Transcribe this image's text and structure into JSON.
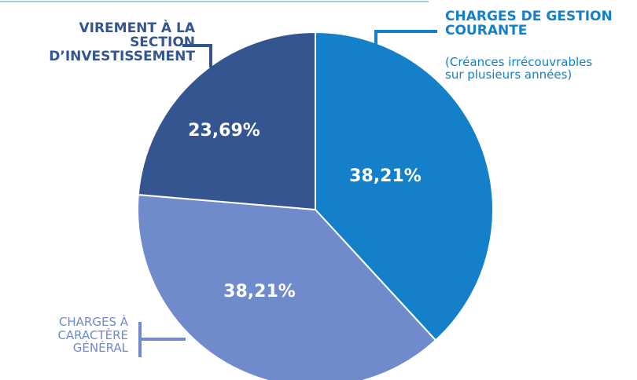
{
  "chart_data": {
    "type": "pie",
    "categories": [
      "CHARGES DE GESTION\nCOURANTE",
      "CHARGES À\nCARACTÈRE\nGÉNÉRAL",
      "VIREMENT À LA\nSECTION\nD’INVESTISSEMENT"
    ],
    "annotation": "(Créances irrécouvrables\nsur plusieurs années)",
    "values": [
      38.21,
      38.21,
      23.69
    ],
    "value_labels": [
      "38,21%",
      "38,21%",
      "23,69%"
    ],
    "colors": [
      "#1380c9",
      "#6f8bcb",
      "#34558f"
    ]
  }
}
